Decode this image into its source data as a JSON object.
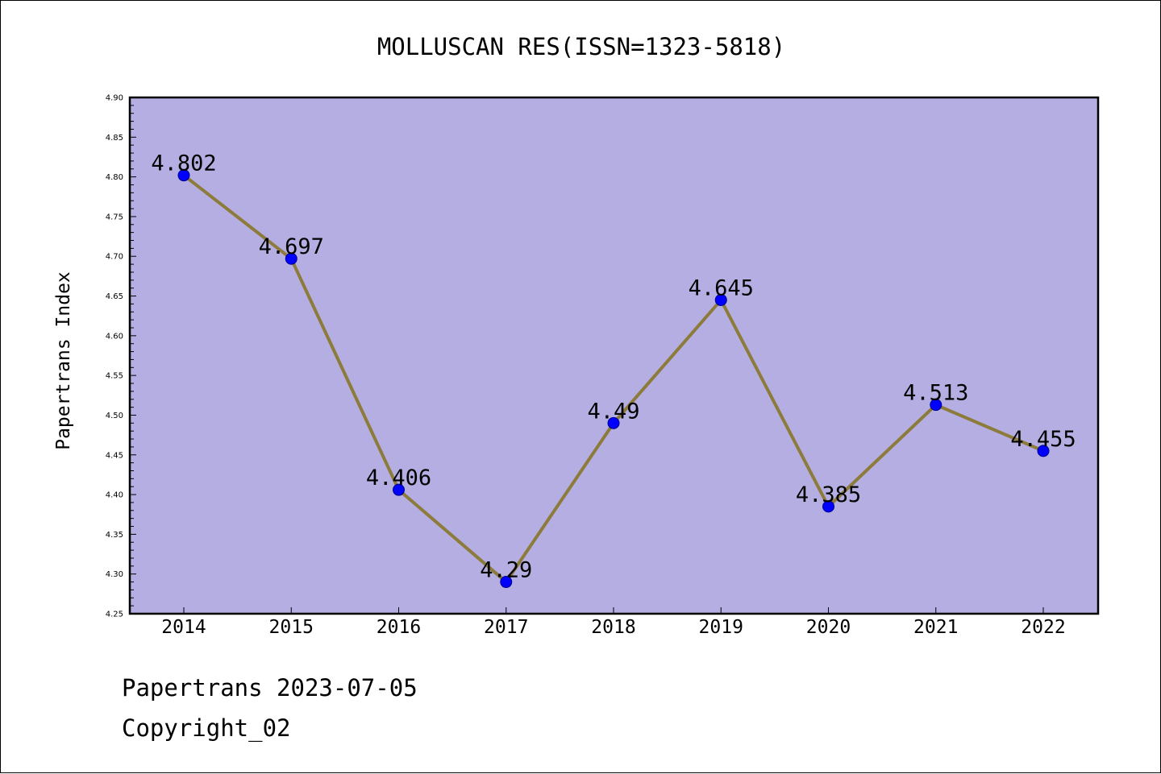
{
  "chart_data": {
    "type": "line",
    "title": "MOLLUSCAN RES(ISSN=1323-5818)",
    "xlabel": "",
    "ylabel": "Papertrans Index",
    "categories": [
      "2014",
      "2015",
      "2016",
      "2017",
      "2018",
      "2019",
      "2020",
      "2021",
      "2022"
    ],
    "values": [
      4.802,
      4.697,
      4.406,
      4.29,
      4.49,
      4.645,
      4.385,
      4.513,
      4.455
    ],
    "data_labels": [
      "4.802",
      "4.697",
      "4.406",
      "4.29",
      "4.49",
      "4.645",
      "4.385",
      "4.513",
      "4.455"
    ],
    "ylim": [
      4.25,
      4.9
    ],
    "yticks": [
      "4.25",
      "4.30",
      "4.35",
      "4.40",
      "4.45",
      "4.50",
      "4.55",
      "4.60",
      "4.65",
      "4.70",
      "4.75",
      "4.80",
      "4.85",
      "4.90"
    ],
    "grid": false,
    "legend": "none",
    "colors": {
      "plot_background": "#b5aee2",
      "line": "#8c7b3a",
      "marker_fill": "#0000ff",
      "marker_edge": "#00008b"
    }
  },
  "footer": {
    "line1": "Papertrans 2023-07-05",
    "line2": "Copyright_02"
  }
}
